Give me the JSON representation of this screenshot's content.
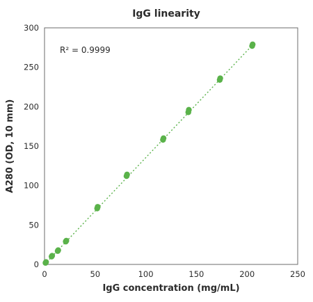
{
  "chart_data": {
    "type": "scatter",
    "title": "IgG linearity",
    "xlabel": "IgG concentration (mg/mL)",
    "ylabel": "A280 (OD, 10 mm)",
    "xlim": [
      0,
      250
    ],
    "ylim": [
      0,
      300
    ],
    "xticks": [
      "0",
      "50",
      "100",
      "150",
      "200",
      "250"
    ],
    "yticks": [
      "0",
      "50",
      "100",
      "150",
      "200",
      "250",
      "300"
    ],
    "grid": false,
    "annotation": "R² = 0.9999",
    "point_color": "#5ab24a",
    "trendline_color": "#5ab24a",
    "series": [
      {
        "points": [
          {
            "x": 1,
            "y": 2
          },
          {
            "x": 1.5,
            "y": 3
          },
          {
            "x": 7,
            "y": 10
          },
          {
            "x": 7.5,
            "y": 11
          },
          {
            "x": 13,
            "y": 17
          },
          {
            "x": 13.5,
            "y": 18
          },
          {
            "x": 21,
            "y": 29
          },
          {
            "x": 21.5,
            "y": 30
          },
          {
            "x": 52,
            "y": 71
          },
          {
            "x": 52.5,
            "y": 73
          },
          {
            "x": 81,
            "y": 112
          },
          {
            "x": 81.5,
            "y": 114
          },
          {
            "x": 117,
            "y": 158
          },
          {
            "x": 117.5,
            "y": 160
          },
          {
            "x": 142,
            "y": 193
          },
          {
            "x": 142.5,
            "y": 196
          },
          {
            "x": 173,
            "y": 234
          },
          {
            "x": 173.5,
            "y": 236
          },
          {
            "x": 205,
            "y": 277
          },
          {
            "x": 205.5,
            "y": 279
          }
        ]
      }
    ],
    "trendline": {
      "x": [
        0,
        206
      ],
      "y": [
        0,
        279
      ]
    }
  }
}
